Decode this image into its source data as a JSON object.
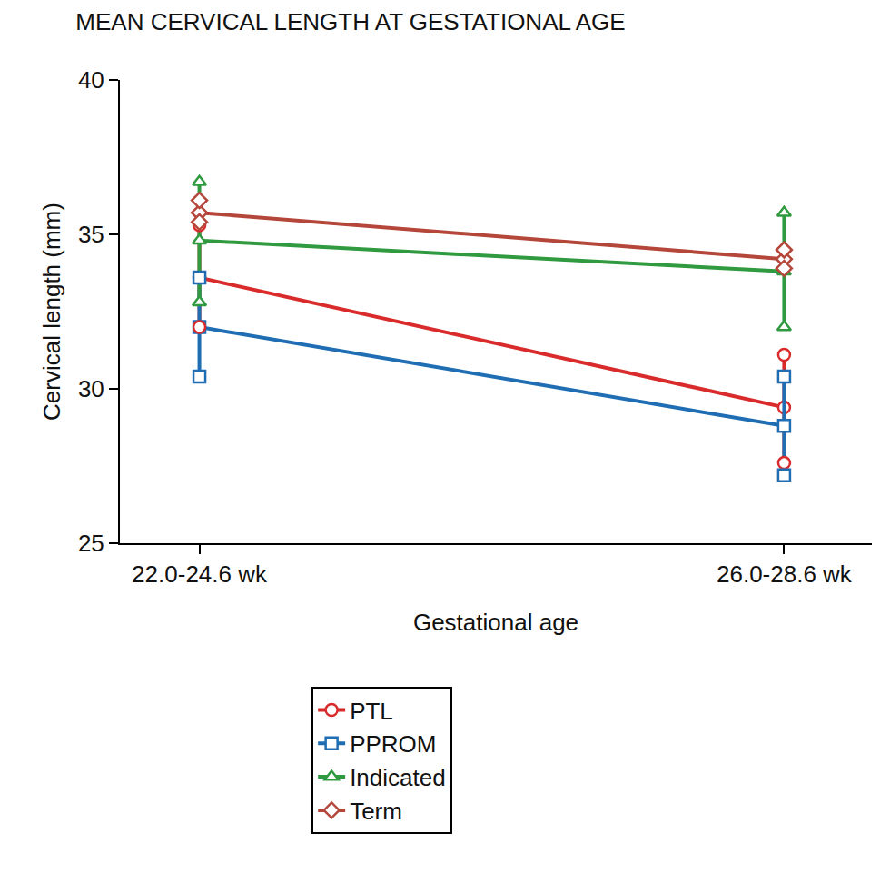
{
  "chart_data": {
    "type": "line",
    "title": "MEAN CERVICAL LENGTH AT GESTATIONAL AGE",
    "x_label": "Gestational age",
    "y_label": "Cervical length (mm)",
    "categories": [
      "22.0-24.6 wk",
      "26.0-28.6 wk"
    ],
    "ylim": [
      25,
      40
    ],
    "yticks": [
      25,
      30,
      35,
      40
    ],
    "grid": false,
    "legend": "bottom",
    "series": [
      {
        "name": "PTL",
        "color": "#d92b2b",
        "marker": "circle",
        "values": [
          33.6,
          29.4
        ],
        "error_lower": [
          32.0,
          27.6
        ],
        "error_upper": [
          35.3,
          31.1
        ]
      },
      {
        "name": "PPROM",
        "color": "#1f6db3",
        "marker": "square",
        "values": [
          32.0,
          28.8
        ],
        "error_lower": [
          30.4,
          27.2
        ],
        "error_upper": [
          33.6,
          30.4
        ]
      },
      {
        "name": "Indicated",
        "color": "#2f9a3f",
        "marker": "triangle-up",
        "values": [
          34.8,
          33.8
        ],
        "error_lower": [
          32.8,
          32.0
        ],
        "error_upper": [
          36.7,
          35.7
        ]
      },
      {
        "name": "Term",
        "color": "#b5463a",
        "marker": "diamond",
        "values": [
          35.7,
          34.2
        ],
        "error_lower": [
          35.4,
          33.9
        ],
        "error_upper": [
          36.1,
          34.5
        ]
      }
    ]
  }
}
